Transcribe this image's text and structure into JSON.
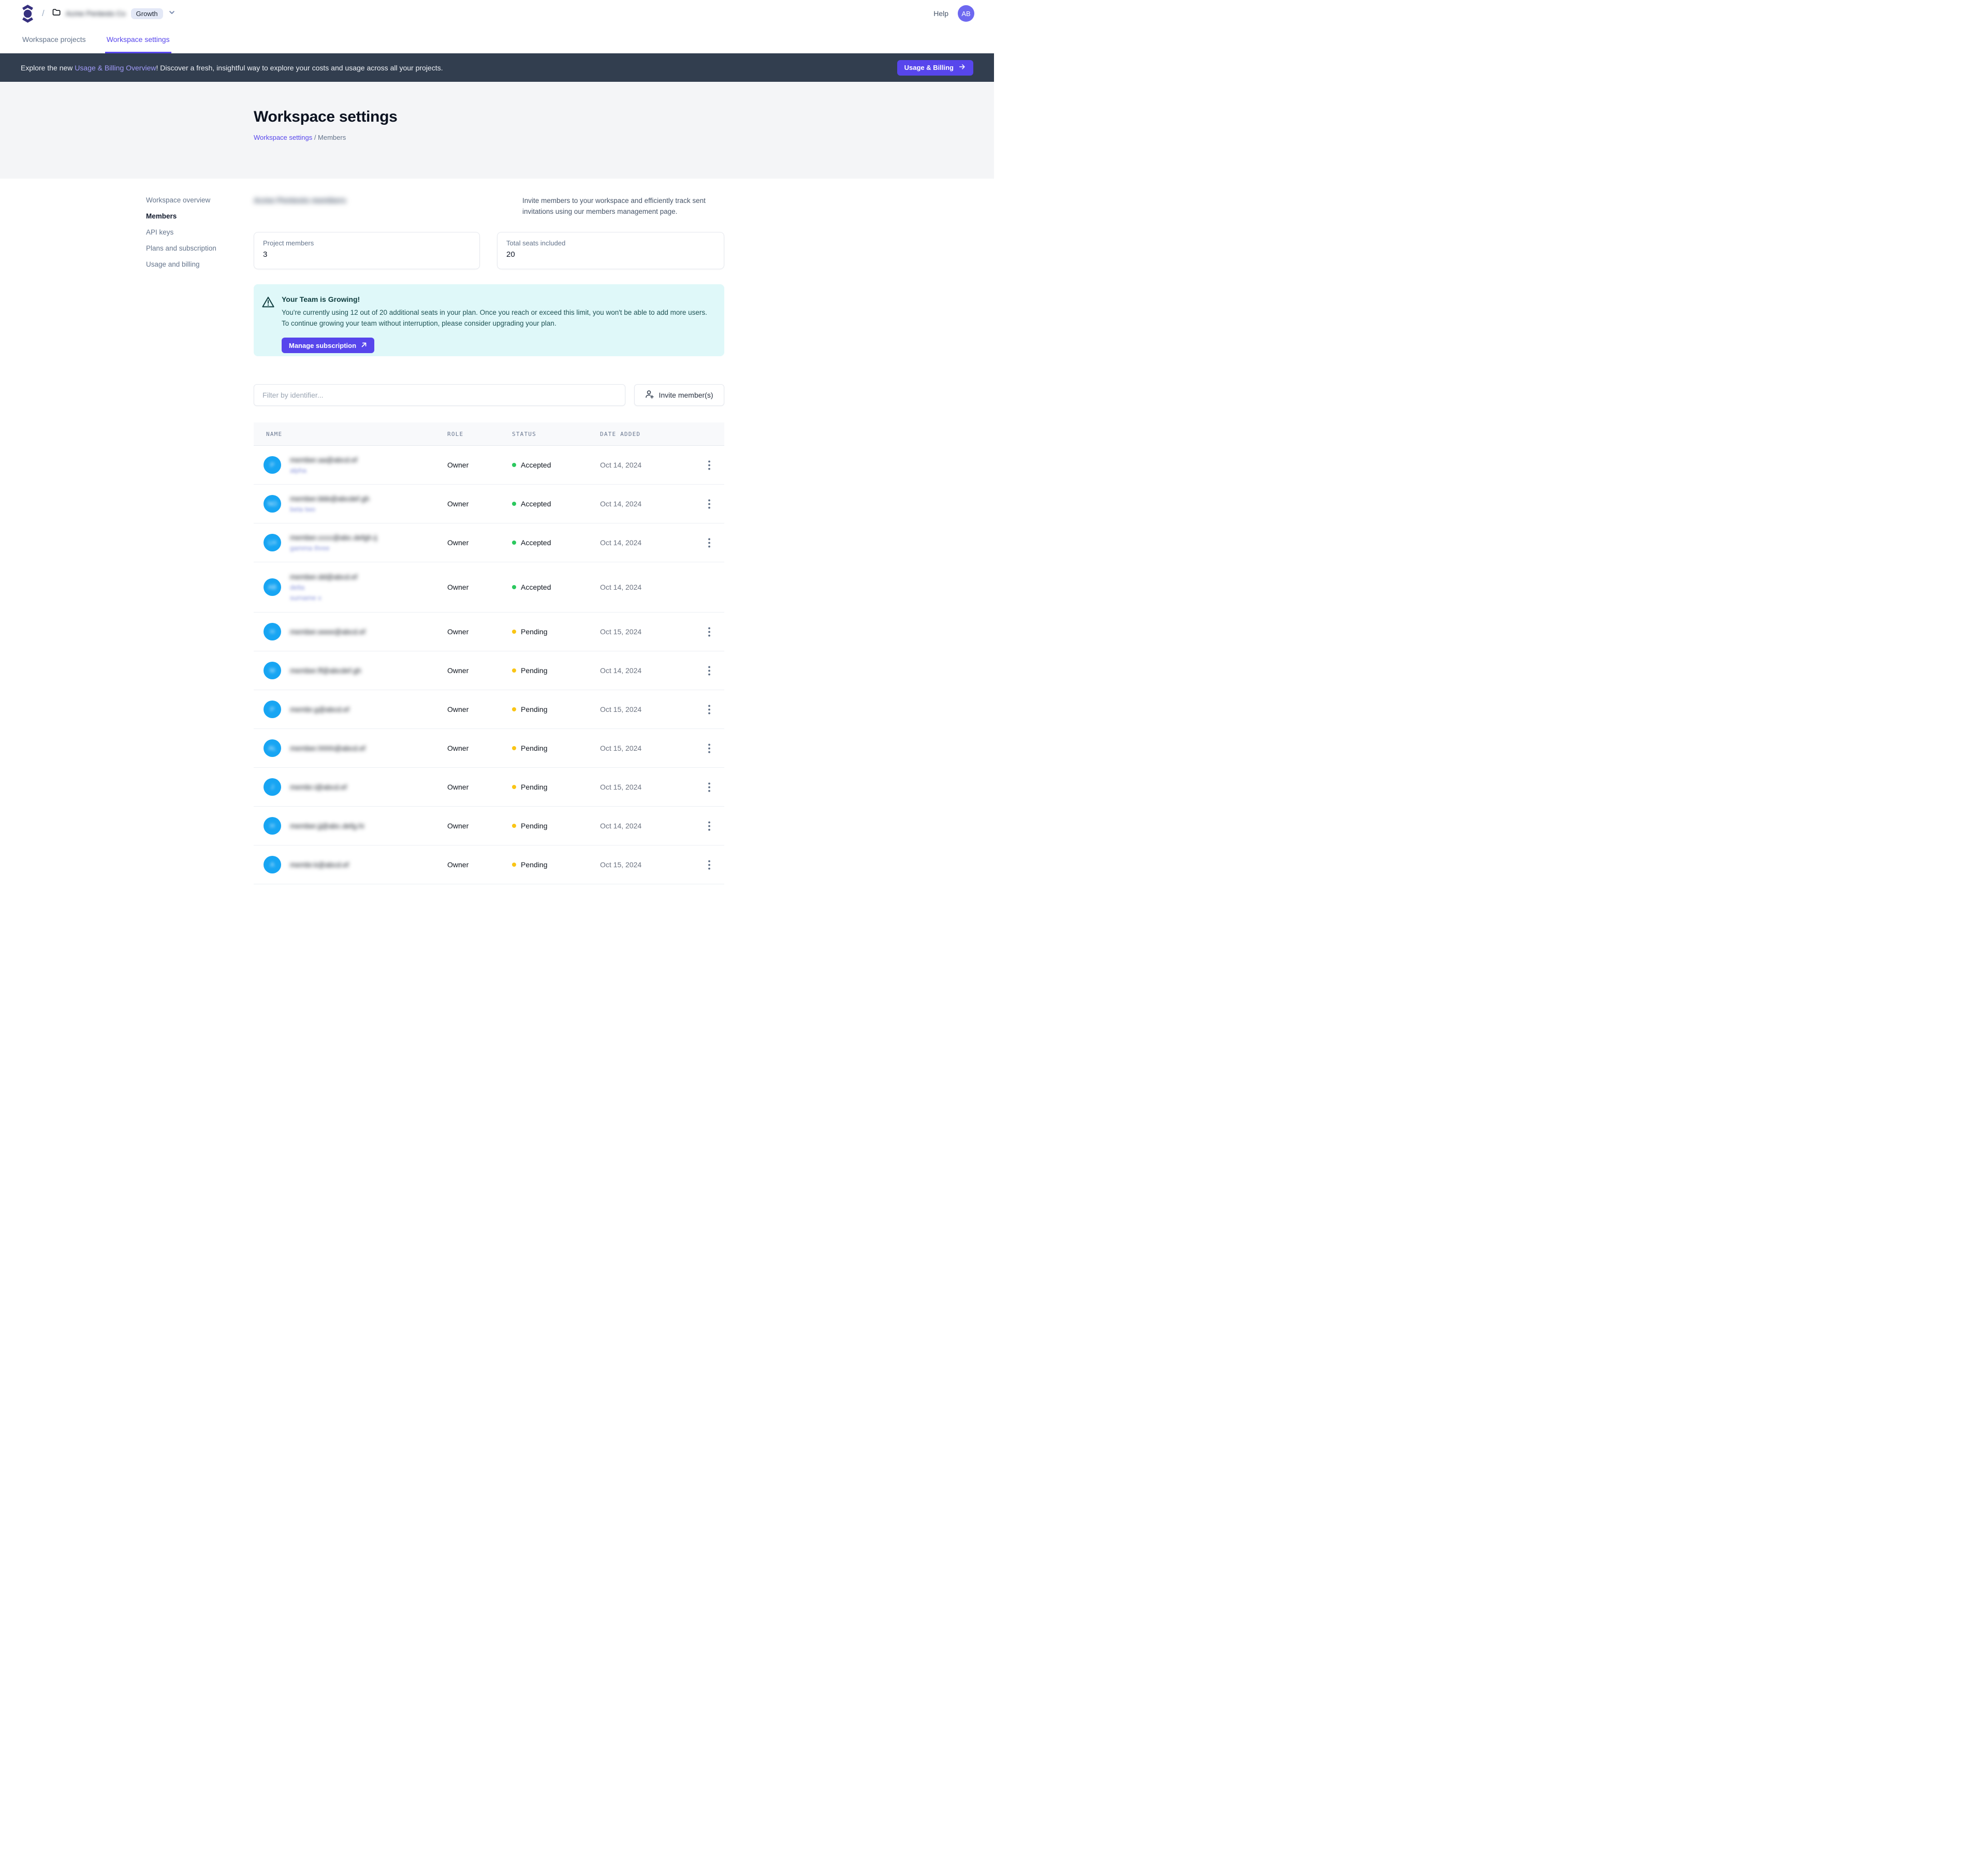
{
  "header": {
    "logo": "app-logo",
    "breadcrumb_slash": "/",
    "workspace_name_redacted": "Acme Pentests Co",
    "plan_badge": "Growth",
    "help_label": "Help",
    "user_initials": "AB"
  },
  "tabs": [
    {
      "label": "Workspace projects",
      "active": false
    },
    {
      "label": "Workspace settings",
      "active": true
    }
  ],
  "banner": {
    "text_pre": "Explore the new ",
    "link_text": "Usage & Billing Overview",
    "text_post": "! Discover a fresh, insightful way to explore your costs and usage across all your projects.",
    "button_label": "Usage & Billing"
  },
  "hero": {
    "title": "Workspace settings",
    "crumb_link": "Workspace settings",
    "crumb_sep": " / ",
    "crumb_current": "Members"
  },
  "settings_nav": {
    "items": [
      {
        "label": "Workspace overview"
      },
      {
        "label": "Members"
      },
      {
        "label": "API keys"
      },
      {
        "label": "Plans and subscription"
      },
      {
        "label": "Usage and billing"
      }
    ],
    "active_index": 1
  },
  "members_section": {
    "heading_redacted": "Acme Pentests members",
    "description": "Invite members to your workspace and efficiently track sent invitations using our members management page.",
    "cards": [
      {
        "label": "Project members",
        "value": "3"
      },
      {
        "label": "Total seats included",
        "value": "20"
      }
    ]
  },
  "alert": {
    "title": "Your Team is Growing!",
    "body": "You're currently using 12 out of 20 additional seats in your plan. Once you reach or exceed this limit, you won't be able to add more users. To continue growing your team without interruption, please consider upgrading your plan.",
    "button_label": "Manage subscription"
  },
  "toolbar": {
    "filter_placeholder": "Filter by identifier...",
    "invite_label": "Invite member(s)"
  },
  "table": {
    "headers": [
      "NAME",
      "ROLE",
      "STATUS",
      "DATE ADDED"
    ],
    "rows": [
      {
        "initials_redacted": "P",
        "email_redacted": "member.aa@abcd.ef",
        "name_lines_redacted": [
          "alpha"
        ],
        "role": "Owner",
        "status": "Accepted",
        "date": "Oct 14, 2024",
        "menu": true
      },
      {
        "initials_redacted": "NO",
        "email_redacted": "member.bbb@abcdef.gh",
        "name_lines_redacted": [
          "beta two"
        ],
        "role": "Owner",
        "status": "Accepted",
        "date": "Oct 14, 2024",
        "menu": true
      },
      {
        "initials_redacted": "LH",
        "email_redacted": "member.cccc@abc.defgh.ij",
        "name_lines_redacted": [
          "gamma three"
        ],
        "role": "Owner",
        "status": "Accepted",
        "date": "Oct 14, 2024",
        "menu": true
      },
      {
        "initials_redacted": "AB",
        "email_redacted": "member.dd@abcd.ef",
        "name_lines_redacted": [
          "delta",
          "surname x"
        ],
        "role": "Owner",
        "status": "Accepted",
        "date": "Oct 14, 2024",
        "menu": false
      },
      {
        "initials_redacted": "H",
        "email_redacted": "member.eeee@abcd.ef",
        "name_lines_redacted": [],
        "role": "Owner",
        "status": "Pending",
        "date": "Oct 15, 2024",
        "menu": true
      },
      {
        "initials_redacted": "M",
        "email_redacted": "member.ff@abcdef.gh",
        "name_lines_redacted": [],
        "role": "Owner",
        "status": "Pending",
        "date": "Oct 14, 2024",
        "menu": true
      },
      {
        "initials_redacted": "P",
        "email_redacted": "membr.g@abcd.ef",
        "name_lines_redacted": [],
        "role": "Owner",
        "status": "Pending",
        "date": "Oct 15, 2024",
        "menu": true
      },
      {
        "initials_redacted": "AL",
        "email_redacted": "member.hhhh@abcd.ef",
        "name_lines_redacted": [],
        "role": "Owner",
        "status": "Pending",
        "date": "Oct 15, 2024",
        "menu": true
      },
      {
        "initials_redacted": "J",
        "email_redacted": "membr.i@abcd.ef",
        "name_lines_redacted": [],
        "role": "Owner",
        "status": "Pending",
        "date": "Oct 15, 2024",
        "menu": true
      },
      {
        "initials_redacted": "H",
        "email_redacted": "member.jj@abc.defg.hi",
        "name_lines_redacted": [],
        "role": "Owner",
        "status": "Pending",
        "date": "Oct 14, 2024",
        "menu": true
      },
      {
        "initials_redacted": "A",
        "email_redacted": "membr.k@abcd.ef",
        "name_lines_redacted": [],
        "role": "Owner",
        "status": "Pending",
        "date": "Oct 15, 2024",
        "menu": true
      }
    ]
  },
  "colors": {
    "accent": "#5746ec",
    "banner_bg": "#323e4f",
    "banner_link": "#a09af7",
    "hero_bg": "#f4f5f7",
    "alert_bg": "#dff8f9",
    "alert_text": "#1f5355",
    "member_avatar": "#17a5f3",
    "user_avatar": "#6d68f0",
    "status_dots": {
      "Accepted": "#2bc85e",
      "Pending": "#fac515"
    }
  }
}
